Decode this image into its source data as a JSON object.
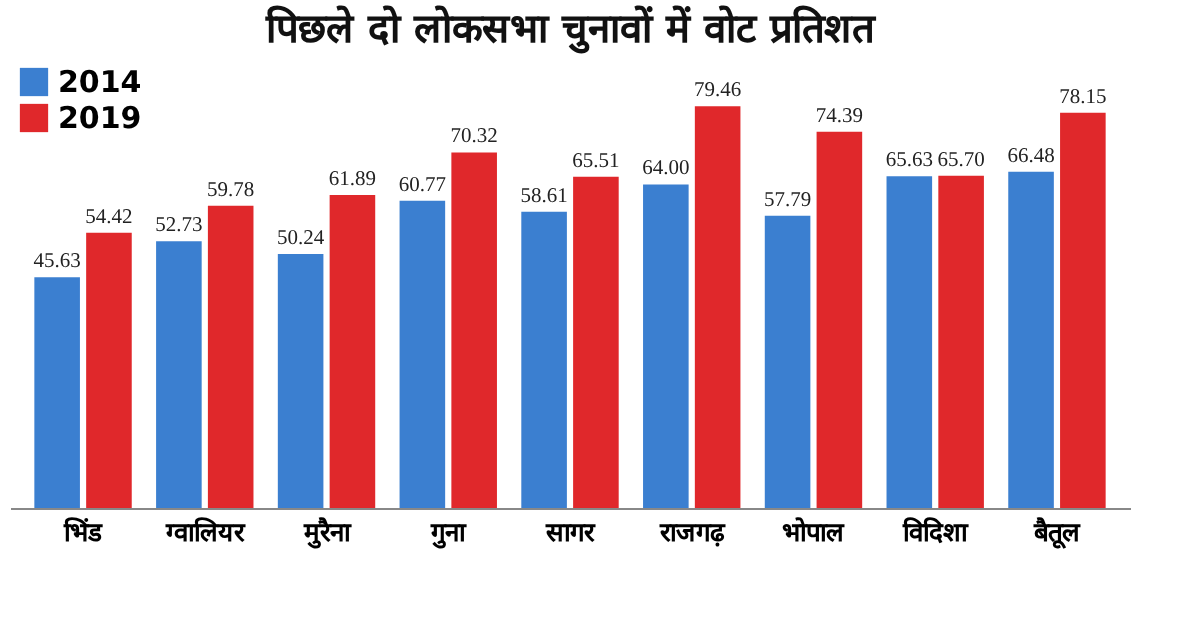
{
  "chart_data": {
    "type": "bar",
    "title": "पिछले दो लोकसभा चुनावों में वोट प्रतिशत",
    "categories": [
      "भिंड",
      "ग्वालियर",
      "मुरैना",
      "गुना",
      "सागर",
      "राजगढ़",
      "भोपाल",
      "विदिशा",
      "बैतूल"
    ],
    "series": [
      {
        "name": "2014",
        "color": "#3b7fd0",
        "values": [
          45.63,
          52.73,
          50.24,
          60.77,
          58.61,
          64.0,
          57.79,
          65.63,
          66.48
        ],
        "value_labels": [
          "45.63",
          "52.73",
          "50.24",
          "60.77",
          "58.61",
          "64.00",
          "57.79",
          "65.63",
          "66.48"
        ]
      },
      {
        "name": "2019",
        "color": "#e0282b",
        "values": [
          54.42,
          59.78,
          61.89,
          70.32,
          65.51,
          79.46,
          74.39,
          65.7,
          78.15
        ],
        "value_labels": [
          "54.42",
          "59.78",
          "61.89",
          "70.32",
          "65.51",
          "79.46",
          "74.39",
          "65.70",
          "78.15"
        ]
      }
    ],
    "legend": "top left",
    "grid": false
  }
}
